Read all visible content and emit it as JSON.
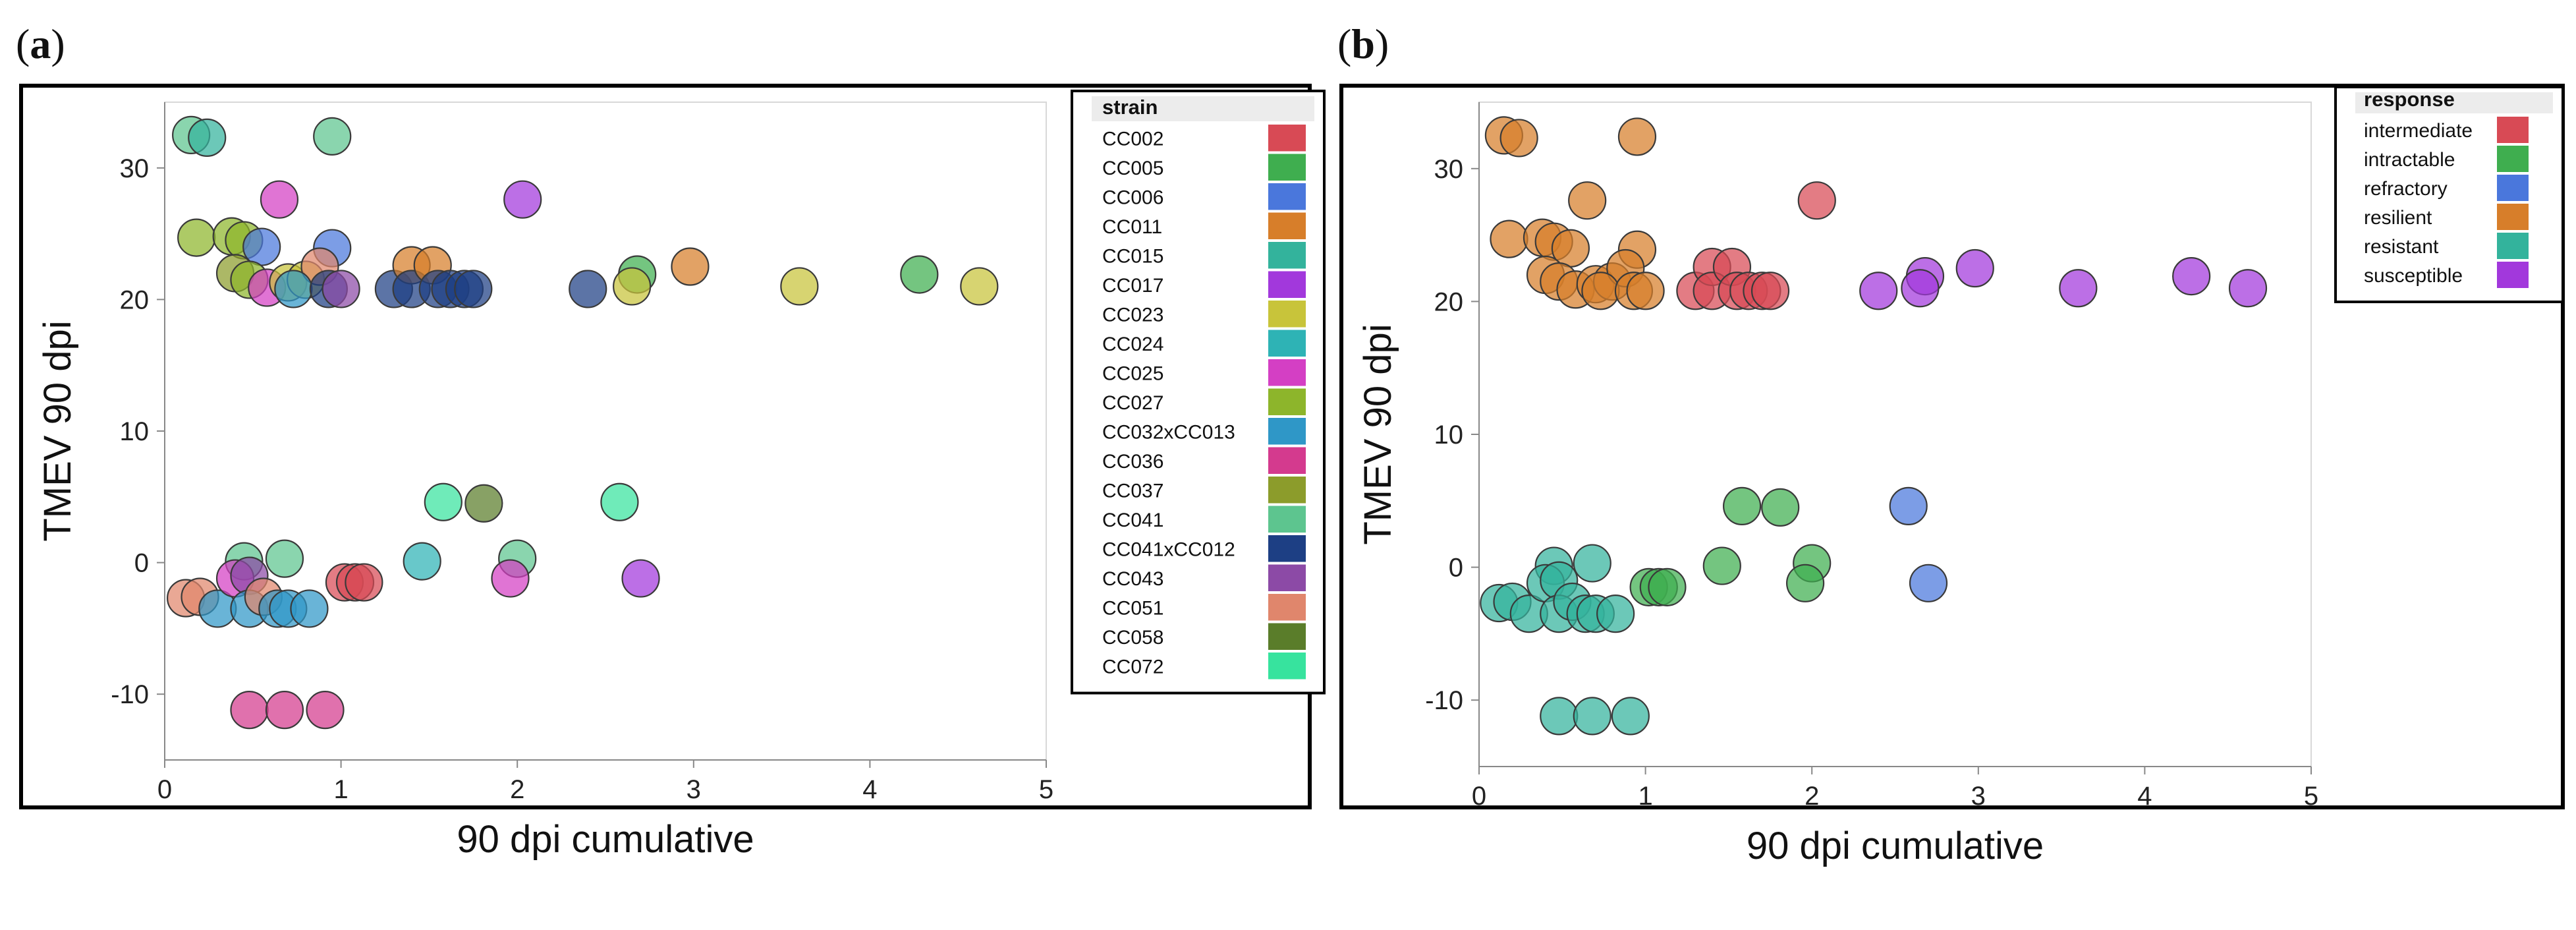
{
  "panels": [
    {
      "label_open": "(",
      "label_letter": "a",
      "label_close": ")"
    },
    {
      "label_open": "(",
      "label_letter": "b",
      "label_close": ")"
    }
  ],
  "chart_data": [
    {
      "type": "scatter",
      "xlabel": "90 dpi cumulative",
      "ylabel": "TMEV 90 dpi",
      "xlim": [
        0,
        5
      ],
      "ylim": [
        -15,
        35
      ],
      "xticks": [
        0,
        1,
        2,
        3,
        4,
        5
      ],
      "yticks": [
        -10,
        0,
        10,
        20,
        30
      ],
      "grid": false,
      "legend_placement": "right",
      "legend_title": "strain",
      "legend": [
        {
          "name": "CC002",
          "color": "#d84a55"
        },
        {
          "name": "CC005",
          "color": "#3fae4f"
        },
        {
          "name": "CC006",
          "color": "#4a77dc"
        },
        {
          "name": "CC011",
          "color": "#d77e2a"
        },
        {
          "name": "CC015",
          "color": "#33b39c"
        },
        {
          "name": "CC017",
          "color": "#a238dc"
        },
        {
          "name": "CC023",
          "color": "#c8c43a"
        },
        {
          "name": "CC024",
          "color": "#2eb3b5"
        },
        {
          "name": "CC025",
          "color": "#d43fc4"
        },
        {
          "name": "CC027",
          "color": "#8db52b"
        },
        {
          "name": "CC032xCC013",
          "color": "#2f97c7"
        },
        {
          "name": "CC036",
          "color": "#d43a8e"
        },
        {
          "name": "CC037",
          "color": "#8c9c2b"
        },
        {
          "name": "CC041",
          "color": "#5dc58f"
        },
        {
          "name": "CC041xCC012",
          "color": "#1d3f84"
        },
        {
          "name": "CC043",
          "color": "#8c4aa6"
        },
        {
          "name": "CC051",
          "color": "#e0866c"
        },
        {
          "name": "CC058",
          "color": "#5a7d2a"
        },
        {
          "name": "CC072",
          "color": "#37e39e"
        }
      ],
      "points": [
        {
          "x": 0.15,
          "y": 32.5,
          "group": "CC041"
        },
        {
          "x": 0.24,
          "y": 32.3,
          "group": "CC015"
        },
        {
          "x": 0.95,
          "y": 32.4,
          "group": "CC041"
        },
        {
          "x": 0.18,
          "y": 24.7,
          "group": "CC027"
        },
        {
          "x": 0.38,
          "y": 24.8,
          "group": "CC027"
        },
        {
          "x": 0.45,
          "y": 24.5,
          "group": "CC027"
        },
        {
          "x": 0.65,
          "y": 27.6,
          "group": "CC025"
        },
        {
          "x": 2.03,
          "y": 27.6,
          "group": "CC017"
        },
        {
          "x": 0.55,
          "y": 24.0,
          "group": "CC006"
        },
        {
          "x": 0.95,
          "y": 23.9,
          "group": "CC006"
        },
        {
          "x": 0.4,
          "y": 22.0,
          "group": "CC037"
        },
        {
          "x": 0.48,
          "y": 21.5,
          "group": "CC027"
        },
        {
          "x": 0.58,
          "y": 20.9,
          "group": "CC025"
        },
        {
          "x": 0.7,
          "y": 21.3,
          "group": "CC023"
        },
        {
          "x": 0.8,
          "y": 21.5,
          "group": "CC023"
        },
        {
          "x": 0.88,
          "y": 22.5,
          "group": "CC051"
        },
        {
          "x": 0.73,
          "y": 20.8,
          "group": "CC032xCC013"
        },
        {
          "x": 0.93,
          "y": 20.8,
          "group": "CC041xCC012"
        },
        {
          "x": 1.0,
          "y": 20.8,
          "group": "CC043"
        },
        {
          "x": 1.3,
          "y": 20.8,
          "group": "CC041xCC012"
        },
        {
          "x": 1.4,
          "y": 22.6,
          "group": "CC011"
        },
        {
          "x": 1.4,
          "y": 20.8,
          "group": "CC041xCC012"
        },
        {
          "x": 1.52,
          "y": 22.6,
          "group": "CC011"
        },
        {
          "x": 1.55,
          "y": 20.8,
          "group": "CC041xCC012"
        },
        {
          "x": 1.62,
          "y": 20.8,
          "group": "CC041xCC012"
        },
        {
          "x": 1.7,
          "y": 20.8,
          "group": "CC041xCC012"
        },
        {
          "x": 1.75,
          "y": 20.8,
          "group": "CC041xCC012"
        },
        {
          "x": 2.4,
          "y": 20.8,
          "group": "CC041xCC012"
        },
        {
          "x": 2.68,
          "y": 21.9,
          "group": "CC005"
        },
        {
          "x": 2.65,
          "y": 21.0,
          "group": "CC023"
        },
        {
          "x": 2.98,
          "y": 22.5,
          "group": "CC011"
        },
        {
          "x": 3.6,
          "y": 21.0,
          "group": "CC023"
        },
        {
          "x": 4.28,
          "y": 21.9,
          "group": "CC005"
        },
        {
          "x": 4.62,
          "y": 21.0,
          "group": "CC023"
        },
        {
          "x": 1.58,
          "y": 4.6,
          "group": "CC072"
        },
        {
          "x": 1.81,
          "y": 4.5,
          "group": "CC058"
        },
        {
          "x": 2.58,
          "y": 4.6,
          "group": "CC072"
        },
        {
          "x": 0.45,
          "y": 0.1,
          "group": "CC041"
        },
        {
          "x": 0.68,
          "y": 0.3,
          "group": "CC041"
        },
        {
          "x": 1.46,
          "y": 0.1,
          "group": "CC024"
        },
        {
          "x": 2.0,
          "y": 0.3,
          "group": "CC041"
        },
        {
          "x": 0.12,
          "y": -2.7,
          "group": "CC051"
        },
        {
          "x": 0.2,
          "y": -2.6,
          "group": "CC051"
        },
        {
          "x": 0.3,
          "y": -3.5,
          "group": "CC032xCC013"
        },
        {
          "x": 0.4,
          "y": -1.2,
          "group": "CC025"
        },
        {
          "x": 0.48,
          "y": -1.0,
          "group": "CC043"
        },
        {
          "x": 0.48,
          "y": -3.5,
          "group": "CC032xCC013"
        },
        {
          "x": 0.56,
          "y": -2.6,
          "group": "CC051"
        },
        {
          "x": 0.64,
          "y": -3.5,
          "group": "CC032xCC013"
        },
        {
          "x": 0.7,
          "y": -3.5,
          "group": "CC032xCC013"
        },
        {
          "x": 0.82,
          "y": -3.5,
          "group": "CC032xCC013"
        },
        {
          "x": 1.02,
          "y": -1.5,
          "group": "CC002"
        },
        {
          "x": 1.08,
          "y": -1.5,
          "group": "CC002"
        },
        {
          "x": 1.13,
          "y": -1.5,
          "group": "CC002"
        },
        {
          "x": 1.96,
          "y": -1.2,
          "group": "CC025"
        },
        {
          "x": 2.7,
          "y": -1.2,
          "group": "CC017"
        },
        {
          "x": 0.48,
          "y": -11.2,
          "group": "CC036"
        },
        {
          "x": 0.68,
          "y": -11.2,
          "group": "CC036"
        },
        {
          "x": 0.91,
          "y": -11.2,
          "group": "CC036"
        }
      ]
    },
    {
      "type": "scatter",
      "xlabel": "90 dpi cumulative",
      "ylabel": "TMEV 90 dpi",
      "xlim": [
        0,
        5
      ],
      "ylim": [
        -15,
        35
      ],
      "xticks": [
        0,
        1,
        2,
        3,
        4,
        5
      ],
      "yticks": [
        -10,
        0,
        10,
        20,
        30
      ],
      "grid": false,
      "legend_placement": "top-right",
      "legend_title": "response",
      "legend": [
        {
          "name": "intermediate",
          "color": "#d84a55"
        },
        {
          "name": "intractable",
          "color": "#3fae4f"
        },
        {
          "name": "refractory",
          "color": "#4a77dc"
        },
        {
          "name": "resilient",
          "color": "#d77e2a"
        },
        {
          "name": "resistant",
          "color": "#33b39c"
        },
        {
          "name": "susceptible",
          "color": "#a238dc"
        }
      ],
      "points": [
        {
          "x": 0.15,
          "y": 32.5,
          "group": "resilient"
        },
        {
          "x": 0.24,
          "y": 32.3,
          "group": "resilient"
        },
        {
          "x": 0.95,
          "y": 32.4,
          "group": "resilient"
        },
        {
          "x": 0.18,
          "y": 24.7,
          "group": "resilient"
        },
        {
          "x": 0.38,
          "y": 24.8,
          "group": "resilient"
        },
        {
          "x": 0.45,
          "y": 24.5,
          "group": "resilient"
        },
        {
          "x": 0.65,
          "y": 27.6,
          "group": "resilient"
        },
        {
          "x": 2.03,
          "y": 27.6,
          "group": "intermediate"
        },
        {
          "x": 0.55,
          "y": 24.0,
          "group": "resilient"
        },
        {
          "x": 0.95,
          "y": 23.9,
          "group": "resilient"
        },
        {
          "x": 0.4,
          "y": 22.0,
          "group": "resilient"
        },
        {
          "x": 0.48,
          "y": 21.5,
          "group": "resilient"
        },
        {
          "x": 0.58,
          "y": 20.9,
          "group": "resilient"
        },
        {
          "x": 0.7,
          "y": 21.3,
          "group": "resilient"
        },
        {
          "x": 0.8,
          "y": 21.5,
          "group": "resilient"
        },
        {
          "x": 0.88,
          "y": 22.5,
          "group": "resilient"
        },
        {
          "x": 0.73,
          "y": 20.8,
          "group": "resilient"
        },
        {
          "x": 0.93,
          "y": 20.8,
          "group": "resilient"
        },
        {
          "x": 1.0,
          "y": 20.8,
          "group": "resilient"
        },
        {
          "x": 1.3,
          "y": 20.8,
          "group": "intermediate"
        },
        {
          "x": 1.4,
          "y": 22.6,
          "group": "intermediate"
        },
        {
          "x": 1.4,
          "y": 20.8,
          "group": "intermediate"
        },
        {
          "x": 1.52,
          "y": 22.6,
          "group": "intermediate"
        },
        {
          "x": 1.55,
          "y": 20.8,
          "group": "intermediate"
        },
        {
          "x": 1.62,
          "y": 20.8,
          "group": "intermediate"
        },
        {
          "x": 1.7,
          "y": 20.8,
          "group": "intermediate"
        },
        {
          "x": 1.75,
          "y": 20.8,
          "group": "intermediate"
        },
        {
          "x": 2.4,
          "y": 20.8,
          "group": "susceptible"
        },
        {
          "x": 2.68,
          "y": 21.9,
          "group": "susceptible"
        },
        {
          "x": 2.65,
          "y": 21.0,
          "group": "susceptible"
        },
        {
          "x": 2.98,
          "y": 22.5,
          "group": "susceptible"
        },
        {
          "x": 3.6,
          "y": 21.0,
          "group": "susceptible"
        },
        {
          "x": 4.28,
          "y": 21.9,
          "group": "susceptible"
        },
        {
          "x": 4.62,
          "y": 21.0,
          "group": "susceptible"
        },
        {
          "x": 1.58,
          "y": 4.6,
          "group": "intractable"
        },
        {
          "x": 1.81,
          "y": 4.5,
          "group": "intractable"
        },
        {
          "x": 2.58,
          "y": 4.6,
          "group": "refractory"
        },
        {
          "x": 0.45,
          "y": 0.1,
          "group": "resistant"
        },
        {
          "x": 0.68,
          "y": 0.3,
          "group": "resistant"
        },
        {
          "x": 1.46,
          "y": 0.1,
          "group": "intractable"
        },
        {
          "x": 2.0,
          "y": 0.3,
          "group": "intractable"
        },
        {
          "x": 0.12,
          "y": -2.7,
          "group": "resistant"
        },
        {
          "x": 0.2,
          "y": -2.6,
          "group": "resistant"
        },
        {
          "x": 0.3,
          "y": -3.5,
          "group": "resistant"
        },
        {
          "x": 0.4,
          "y": -1.2,
          "group": "resistant"
        },
        {
          "x": 0.48,
          "y": -1.0,
          "group": "resistant"
        },
        {
          "x": 0.48,
          "y": -3.5,
          "group": "resistant"
        },
        {
          "x": 0.56,
          "y": -2.6,
          "group": "resistant"
        },
        {
          "x": 0.64,
          "y": -3.5,
          "group": "resistant"
        },
        {
          "x": 0.7,
          "y": -3.5,
          "group": "resistant"
        },
        {
          "x": 0.82,
          "y": -3.5,
          "group": "resistant"
        },
        {
          "x": 1.02,
          "y": -1.5,
          "group": "intractable"
        },
        {
          "x": 1.08,
          "y": -1.5,
          "group": "intractable"
        },
        {
          "x": 1.13,
          "y": -1.5,
          "group": "intractable"
        },
        {
          "x": 1.96,
          "y": -1.2,
          "group": "intractable"
        },
        {
          "x": 2.7,
          "y": -1.2,
          "group": "refractory"
        },
        {
          "x": 0.48,
          "y": -11.2,
          "group": "resistant"
        },
        {
          "x": 0.68,
          "y": -11.2,
          "group": "resistant"
        },
        {
          "x": 0.91,
          "y": -11.2,
          "group": "resistant"
        }
      ]
    }
  ]
}
